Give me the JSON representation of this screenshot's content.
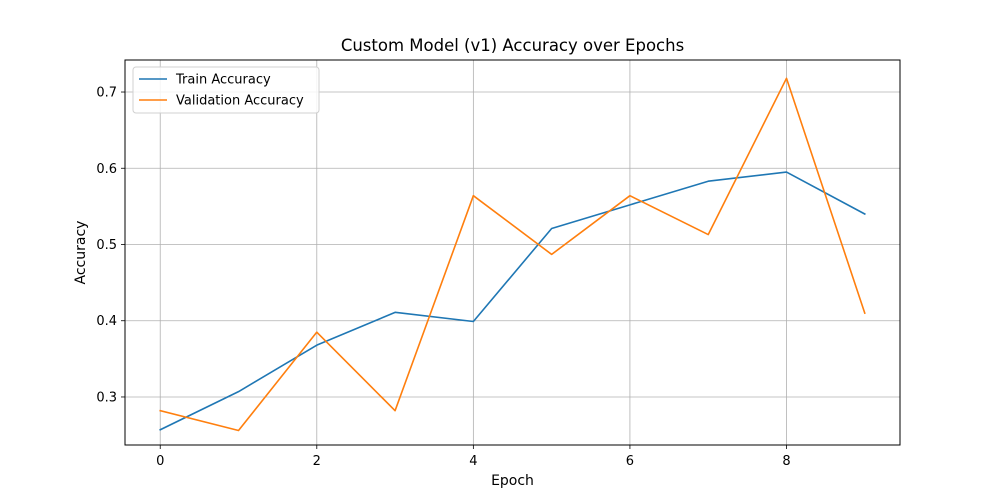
{
  "chart_data": {
    "type": "line",
    "title": "Custom Model (v1) Accuracy over Epochs",
    "xlabel": "Epoch",
    "ylabel": "Accuracy",
    "x": [
      0,
      1,
      2,
      3,
      4,
      5,
      6,
      7,
      8,
      9
    ],
    "xlim": [
      -0.45,
      9.45
    ],
    "ylim": [
      0.237,
      0.742
    ],
    "xticks": [
      0,
      2,
      4,
      6,
      8
    ],
    "yticks": [
      0.3,
      0.4,
      0.5,
      0.6,
      0.7
    ],
    "xtick_labels": [
      "0",
      "2",
      "4",
      "6",
      "8"
    ],
    "ytick_labels": [
      "0.3",
      "0.4",
      "0.5",
      "0.6",
      "0.7"
    ],
    "grid": true,
    "legend_position": "upper-left",
    "series": [
      {
        "name": "Train Accuracy",
        "color": "#1f77b4",
        "values": [
          0.257,
          0.307,
          0.368,
          0.411,
          0.399,
          0.521,
          0.552,
          0.583,
          0.595,
          0.54
        ]
      },
      {
        "name": "Validation Accuracy",
        "color": "#ff7f0e",
        "values": [
          0.282,
          0.256,
          0.385,
          0.282,
          0.564,
          0.487,
          0.564,
          0.513,
          0.718,
          0.41
        ]
      }
    ]
  }
}
